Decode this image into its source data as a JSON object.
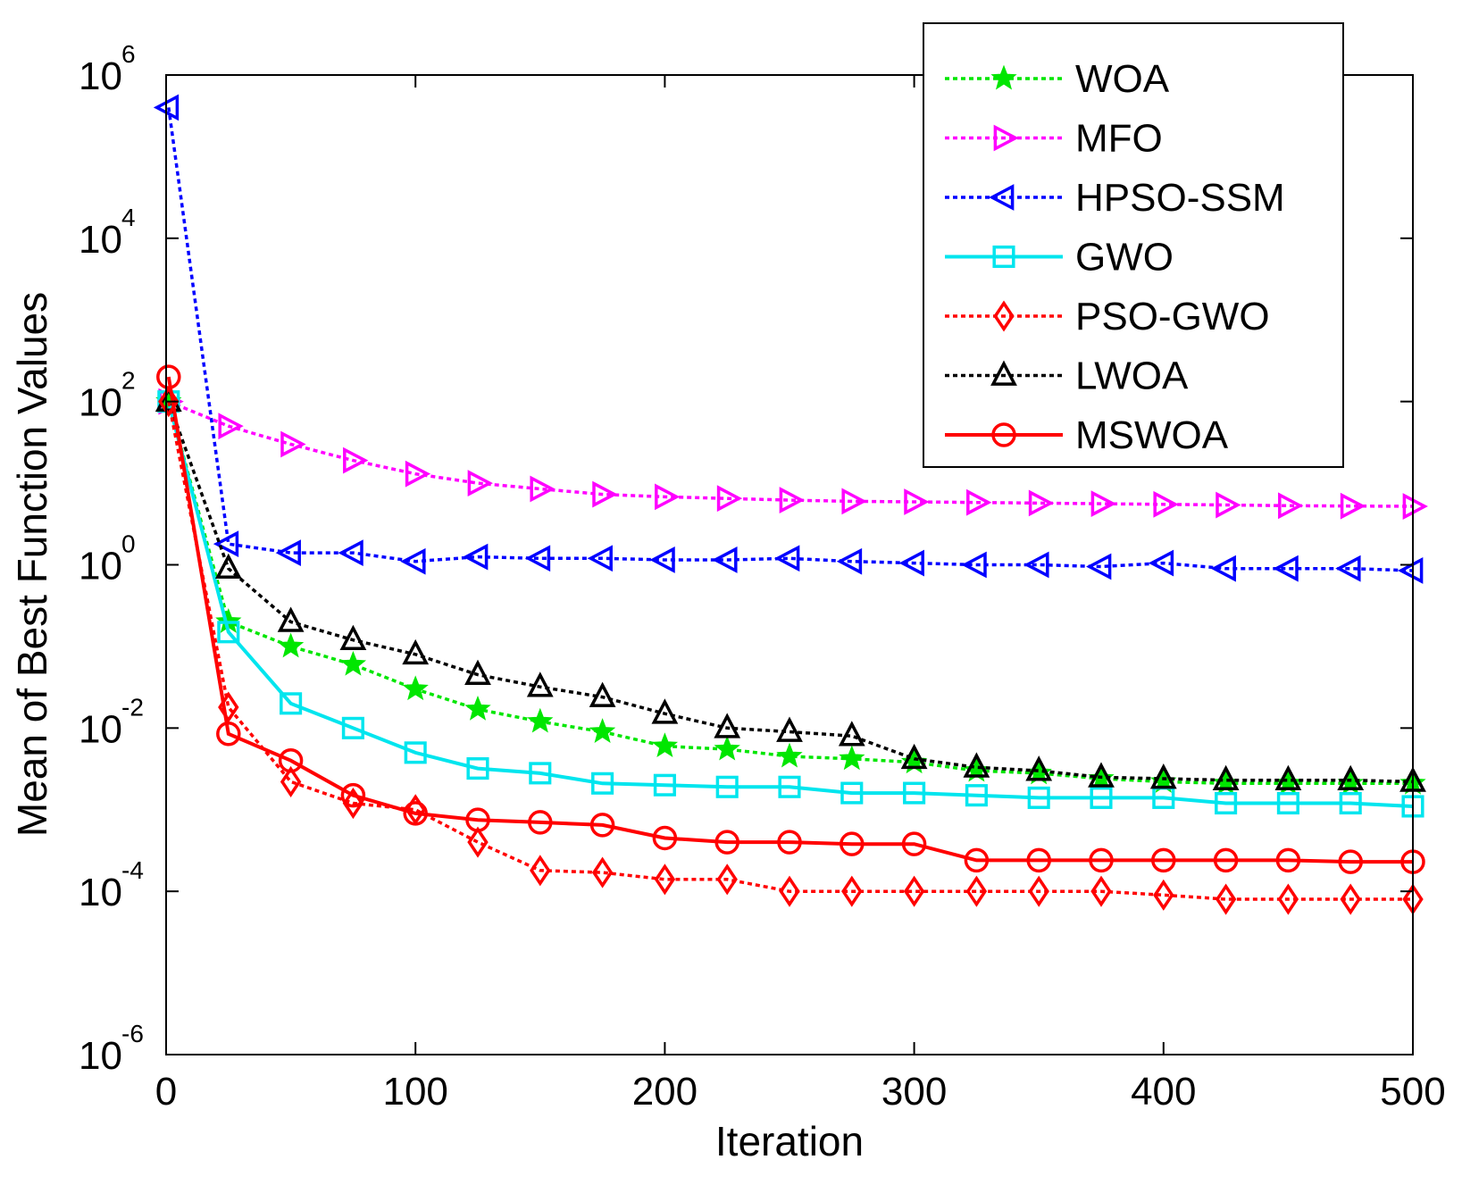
{
  "chart_data": {
    "type": "line",
    "title": "",
    "xlabel": "Iteration",
    "ylabel": "Mean of Best Function Values",
    "yscale": "log",
    "xlim": [
      0,
      500
    ],
    "ylim_exp": [
      -6,
      6
    ],
    "x_ticks": [
      0,
      100,
      200,
      300,
      400,
      500
    ],
    "x_tick_labels": [
      "0",
      "100",
      "200",
      "300",
      "400",
      "500"
    ],
    "y_ticks_exp": [
      -6,
      -4,
      -2,
      0,
      2,
      4,
      6
    ],
    "y_tick_base": "10",
    "y_tick_exponents": [
      "-6",
      "-4",
      "-2",
      "0",
      "2",
      "4",
      "6"
    ],
    "legend_position": "top-right",
    "grid": false,
    "x": [
      1,
      25,
      50,
      75,
      100,
      125,
      150,
      175,
      200,
      225,
      250,
      275,
      300,
      325,
      350,
      375,
      400,
      425,
      450,
      475,
      500
    ],
    "series": [
      {
        "name": "WOA",
        "color": "#00e600",
        "line": "dotted",
        "marker": "star",
        "values": [
          100,
          0.2,
          0.1,
          0.06,
          0.03,
          0.017,
          0.012,
          0.009,
          0.006,
          0.0055,
          0.0045,
          0.0042,
          0.0038,
          0.003,
          0.0028,
          0.0024,
          0.0022,
          0.0021,
          0.0021,
          0.0021,
          0.0021
        ]
      },
      {
        "name": "MFO",
        "color": "#ff00ff",
        "line": "dotted",
        "marker": "triangle-right",
        "values": [
          100,
          50,
          30,
          19,
          13,
          10,
          8.5,
          7.3,
          6.8,
          6.5,
          6.2,
          6,
          5.9,
          5.8,
          5.7,
          5.6,
          5.5,
          5.4,
          5.3,
          5.25,
          5.2
        ]
      },
      {
        "name": "HPSO-SSM",
        "color": "#0000ff",
        "line": "dotted",
        "marker": "triangle-left",
        "values": [
          400000,
          1.8,
          1.4,
          1.4,
          1.1,
          1.25,
          1.2,
          1.2,
          1.15,
          1.15,
          1.2,
          1.1,
          1.05,
          1,
          1,
          0.95,
          1.05,
          0.9,
          0.9,
          0.9,
          0.85
        ]
      },
      {
        "name": "GWO",
        "color": "#00e5ee",
        "line": "solid",
        "marker": "square",
        "values": [
          100,
          0.15,
          0.02,
          0.01,
          0.005,
          0.0032,
          0.0028,
          0.0021,
          0.002,
          0.0019,
          0.0019,
          0.0016,
          0.0016,
          0.0015,
          0.0014,
          0.0014,
          0.0014,
          0.0012,
          0.0012,
          0.0012,
          0.0011
        ]
      },
      {
        "name": "PSO-GWO",
        "color": "#ff0000",
        "line": "dotted",
        "marker": "diamond",
        "values": [
          100,
          0.018,
          0.0022,
          0.0012,
          0.001,
          0.0004,
          0.00018,
          0.00017,
          0.00014,
          0.00014,
          0.0001,
          0.0001,
          0.0001,
          0.0001,
          0.0001,
          0.0001,
          9e-05,
          8e-05,
          8e-05,
          8e-05,
          8e-05
        ]
      },
      {
        "name": "LWOA",
        "color": "#000000",
        "line": "dotted",
        "marker": "triangle-up",
        "values": [
          100,
          0.9,
          0.2,
          0.12,
          0.08,
          0.045,
          0.032,
          0.024,
          0.015,
          0.01,
          0.009,
          0.008,
          0.0042,
          0.0033,
          0.003,
          0.0025,
          0.0024,
          0.0023,
          0.0023,
          0.0023,
          0.0022
        ]
      },
      {
        "name": "MSWOA",
        "color": "#ff0000",
        "line": "solid",
        "marker": "circle",
        "values": [
          200,
          0.0085,
          0.004,
          0.0015,
          0.0009,
          0.00075,
          0.0007,
          0.00065,
          0.00045,
          0.0004,
          0.0004,
          0.00038,
          0.00038,
          0.00024,
          0.00024,
          0.00024,
          0.00024,
          0.00024,
          0.00024,
          0.00023,
          0.00023
        ]
      }
    ]
  }
}
